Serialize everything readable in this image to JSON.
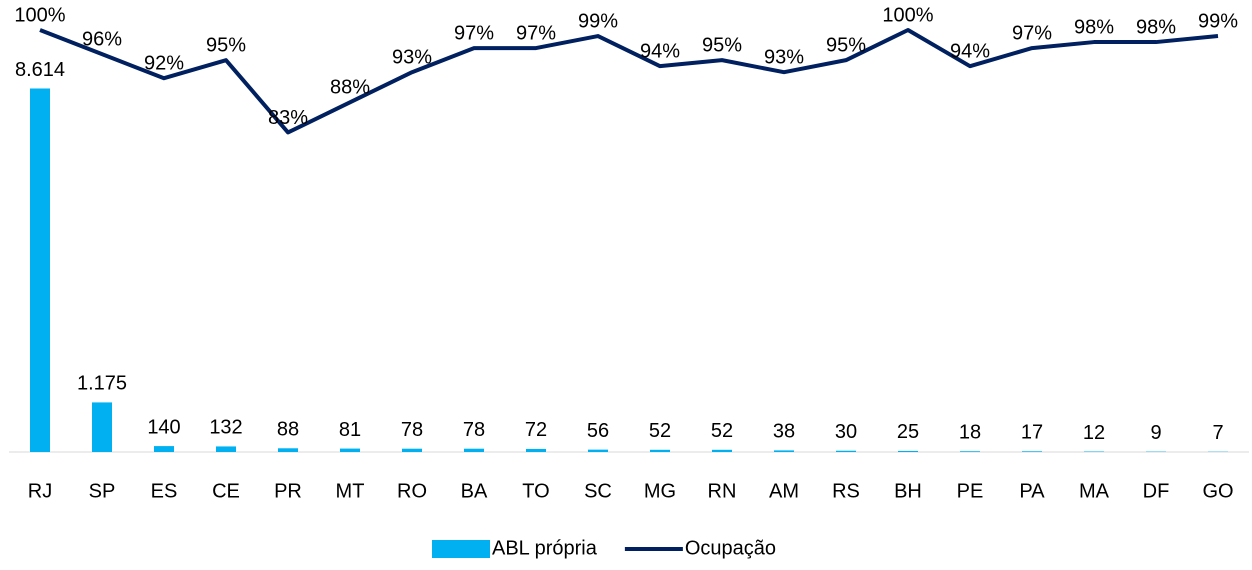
{
  "chart_data": {
    "type": "bar",
    "categories": [
      "RJ",
      "SP",
      "ES",
      "CE",
      "PR",
      "MT",
      "RO",
      "BA",
      "TO",
      "SC",
      "MG",
      "RN",
      "AM",
      "RS",
      "BH",
      "PE",
      "PA",
      "MA",
      "DF",
      "GO"
    ],
    "series": [
      {
        "name": "ABL própria",
        "type": "bar",
        "color": "#00b0f0",
        "values": [
          8614,
          1175,
          140,
          132,
          88,
          81,
          78,
          78,
          72,
          56,
          52,
          52,
          38,
          30,
          25,
          18,
          17,
          12,
          9,
          7
        ],
        "value_labels": [
          "8.614",
          "1.175",
          "140",
          "132",
          "88",
          "81",
          "78",
          "78",
          "72",
          "56",
          "52",
          "52",
          "38",
          "30",
          "25",
          "18",
          "17",
          "12",
          "9",
          "7"
        ]
      },
      {
        "name": "Ocupação",
        "type": "line",
        "axis": "y2",
        "color": "#002060",
        "values": [
          100,
          96,
          92,
          95,
          83,
          88,
          93,
          97,
          97,
          99,
          94,
          95,
          93,
          95,
          100,
          94,
          97,
          98,
          98,
          99
        ],
        "value_labels": [
          "100%",
          "96%",
          "92%",
          "95%",
          "83%",
          "88%",
          "93%",
          "97%",
          "97%",
          "99%",
          "94%",
          "95%",
          "93%",
          "95%",
          "100%",
          "94%",
          "97%",
          "98%",
          "98%",
          "99%"
        ]
      }
    ],
    "ylim": [
      0,
      10000
    ],
    "y2lim": [
      30,
      100
    ],
    "legend": "bottom"
  }
}
